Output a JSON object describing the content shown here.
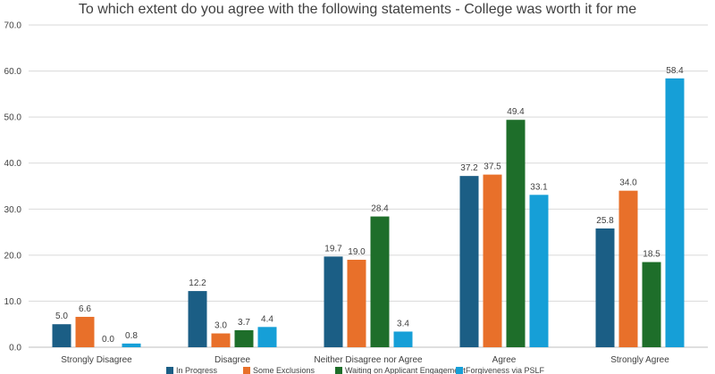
{
  "chart_data": {
    "type": "bar",
    "title": "To which extent do you agree with the following statements - College was worth it for me",
    "categories": [
      "Strongly Disagree",
      "Disagree",
      "Neither Disagree nor Agree",
      "Agree",
      "Strongly Agree"
    ],
    "series": [
      {
        "name": "In Progress",
        "color": "#1b5e85",
        "values": [
          5.0,
          12.2,
          19.7,
          37.2,
          25.8
        ]
      },
      {
        "name": "Some Exclusions",
        "color": "#e8702a",
        "values": [
          6.6,
          3.0,
          19.0,
          37.5,
          34.0
        ]
      },
      {
        "name": "Waiting on Applicant Engagement",
        "color": "#1e6e2a",
        "values": [
          0.0,
          3.7,
          28.4,
          49.4,
          18.5
        ]
      },
      {
        "name": "Forgiveness via PSLF",
        "color": "#169fd7",
        "values": [
          0.8,
          4.4,
          3.4,
          33.1,
          58.4
        ]
      }
    ],
    "ylim": [
      0,
      70
    ],
    "yticks": [
      "0.0",
      "10.0",
      "20.0",
      "30.0",
      "40.0",
      "50.0",
      "60.0",
      "70.0"
    ],
    "xlabel": "",
    "ylabel": "",
    "grid": true,
    "legend": "bottom"
  }
}
